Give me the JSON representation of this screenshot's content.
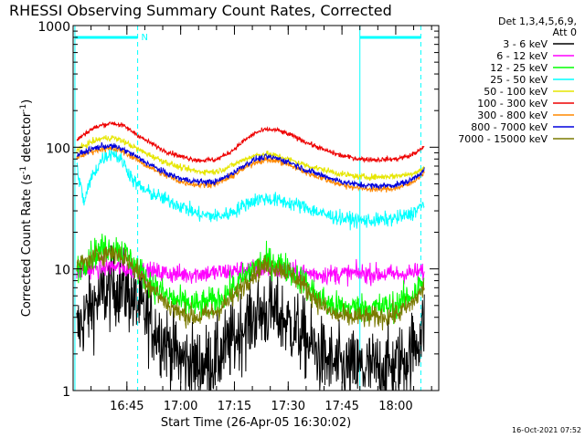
{
  "chart_data": {
    "type": "line",
    "title": "RHESSI Observing Summary Count Rates, Corrected",
    "xlabel": "Start Time (26-Apr-05 16:30:02)",
    "ylabel_main": "Corrected Count Rate (s",
    "ylabel_sup1": "-1",
    "ylabel_mid": " detector",
    "ylabel_sup2": "-1",
    "ylabel_end": ")",
    "yscale": "log",
    "ylim": [
      1,
      1000
    ],
    "xlim_minutes": [
      0,
      102
    ],
    "x_unit": "minutes after 16:30:02",
    "y_ticks": [
      {
        "value": 1,
        "label": "1"
      },
      {
        "value": 10,
        "label": "10"
      },
      {
        "value": 100,
        "label": "100"
      },
      {
        "value": 1000,
        "label": "1000"
      }
    ],
    "x_ticks": [
      {
        "minute": 15,
        "label": "16:45"
      },
      {
        "minute": 30,
        "label": "17:00"
      },
      {
        "minute": 45,
        "label": "17:15"
      },
      {
        "minute": 60,
        "label": "17:30"
      },
      {
        "minute": 75,
        "label": "17:45"
      },
      {
        "minute": 90,
        "label": "18:00"
      }
    ],
    "grid": false,
    "legend_position": "right",
    "legend_header": [
      "Det 1,3,4,5,6,9,",
      "Att 0"
    ],
    "timestamp": "16-Oct-2021 07:52",
    "annotation": {
      "text": "N",
      "minute": 18.5
    },
    "vertical_markers_minutes": [
      {
        "minute": 0.5,
        "style": "solid"
      },
      {
        "minute": 18,
        "style": "dashed"
      },
      {
        "minute": 80,
        "style": "solid"
      },
      {
        "minute": 97,
        "style": "dashed"
      }
    ],
    "night_bars": [
      {
        "from": 0.5,
        "to": 18
      },
      {
        "from": 80,
        "to": 97
      }
    ],
    "series": [
      {
        "name": "3 - 6 keV",
        "color": "#000000",
        "noise": 0.32,
        "points": [
          [
            1,
            3.0
          ],
          [
            4,
            4.5
          ],
          [
            8,
            6.0
          ],
          [
            12,
            7.2
          ],
          [
            15,
            6.5
          ],
          [
            18,
            5.0
          ],
          [
            22,
            3.5
          ],
          [
            26,
            2.5
          ],
          [
            30,
            1.8
          ],
          [
            35,
            1.6
          ],
          [
            40,
            1.8
          ],
          [
            44,
            2.5
          ],
          [
            48,
            3.5
          ],
          [
            52,
            4.3
          ],
          [
            55,
            4.5
          ],
          [
            58,
            4.0
          ],
          [
            62,
            3.2
          ],
          [
            66,
            2.4
          ],
          [
            70,
            1.8
          ],
          [
            75,
            1.5
          ],
          [
            80,
            1.5
          ],
          [
            85,
            1.5
          ],
          [
            90,
            1.6
          ],
          [
            94,
            2.0
          ],
          [
            97,
            3.0
          ],
          [
            98,
            3.5
          ]
        ]
      },
      {
        "name": "6 - 12 keV",
        "color": "#ff00ff",
        "noise": 0.08,
        "points": [
          [
            1,
            9.5
          ],
          [
            10,
            10.5
          ],
          [
            20,
            9.5
          ],
          [
            30,
            9.0
          ],
          [
            40,
            9.3
          ],
          [
            50,
            10
          ],
          [
            55,
            10
          ],
          [
            60,
            9.5
          ],
          [
            70,
            9.0
          ],
          [
            80,
            9.2
          ],
          [
            90,
            9.0
          ],
          [
            98,
            9.5
          ]
        ]
      },
      {
        "name": "12 - 25 keV",
        "color": "#00ff00",
        "noise": 0.12,
        "points": [
          [
            1,
            10
          ],
          [
            5,
            13
          ],
          [
            9,
            15
          ],
          [
            12,
            15
          ],
          [
            15,
            13
          ],
          [
            18,
            10
          ],
          [
            22,
            7.5
          ],
          [
            26,
            6
          ],
          [
            30,
            5.3
          ],
          [
            35,
            5
          ],
          [
            40,
            5.5
          ],
          [
            45,
            7
          ],
          [
            50,
            10
          ],
          [
            53,
            11.5
          ],
          [
            56,
            11.5
          ],
          [
            60,
            10
          ],
          [
            64,
            8
          ],
          [
            68,
            6
          ],
          [
            72,
            5
          ],
          [
            76,
            4.8
          ],
          [
            80,
            4.8
          ],
          [
            85,
            4.8
          ],
          [
            90,
            5
          ],
          [
            94,
            6
          ],
          [
            98,
            8
          ]
        ]
      },
      {
        "name": "25 - 50 keV",
        "color": "#00ffff",
        "noise": 0.06,
        "points": [
          [
            1,
            70
          ],
          [
            3,
            35
          ],
          [
            5,
            55
          ],
          [
            8,
            80
          ],
          [
            11,
            92
          ],
          [
            14,
            75
          ],
          [
            17,
            52
          ],
          [
            20,
            44
          ],
          [
            25,
            38
          ],
          [
            30,
            33
          ],
          [
            35,
            28
          ],
          [
            40,
            27
          ],
          [
            43,
            28
          ],
          [
            46,
            31
          ],
          [
            48,
            34
          ],
          [
            51,
            37
          ],
          [
            53,
            38
          ],
          [
            56,
            37
          ],
          [
            60,
            35
          ],
          [
            65,
            32
          ],
          [
            70,
            28
          ],
          [
            75,
            26
          ],
          [
            80,
            25
          ],
          [
            85,
            25
          ],
          [
            90,
            26
          ],
          [
            94,
            28
          ],
          [
            98,
            34
          ]
        ]
      },
      {
        "name": "50 - 100 keV",
        "color": "#e6e600",
        "noise": 0.025,
        "points": [
          [
            1,
            95
          ],
          [
            5,
            110
          ],
          [
            8,
            118
          ],
          [
            11,
            120
          ],
          [
            14,
            112
          ],
          [
            17,
            100
          ],
          [
            20,
            90
          ],
          [
            25,
            77
          ],
          [
            30,
            68
          ],
          [
            35,
            63
          ],
          [
            40,
            63
          ],
          [
            44,
            70
          ],
          [
            48,
            80
          ],
          [
            51,
            86
          ],
          [
            54,
            88
          ],
          [
            57,
            85
          ],
          [
            61,
            78
          ],
          [
            65,
            71
          ],
          [
            70,
            65
          ],
          [
            75,
            60
          ],
          [
            80,
            57
          ],
          [
            85,
            57
          ],
          [
            90,
            58
          ],
          [
            94,
            60
          ],
          [
            98,
            67
          ]
        ]
      },
      {
        "name": "100 - 300 keV",
        "color": "#ee0000",
        "noise": 0.02,
        "points": [
          [
            1,
            115
          ],
          [
            5,
            140
          ],
          [
            8,
            152
          ],
          [
            11,
            158
          ],
          [
            14,
            150
          ],
          [
            17,
            132
          ],
          [
            20,
            115
          ],
          [
            25,
            95
          ],
          [
            30,
            84
          ],
          [
            35,
            78
          ],
          [
            40,
            79
          ],
          [
            44,
            92
          ],
          [
            48,
            115
          ],
          [
            51,
            132
          ],
          [
            54,
            140
          ],
          [
            57,
            138
          ],
          [
            61,
            125
          ],
          [
            65,
            110
          ],
          [
            70,
            95
          ],
          [
            75,
            85
          ],
          [
            80,
            80
          ],
          [
            85,
            79
          ],
          [
            90,
            80
          ],
          [
            94,
            85
          ],
          [
            98,
            100
          ]
        ]
      },
      {
        "name": "300 - 800 keV",
        "color": "#ff8800",
        "noise": 0.025,
        "points": [
          [
            1,
            83
          ],
          [
            5,
            92
          ],
          [
            8,
            97
          ],
          [
            11,
            97
          ],
          [
            14,
            92
          ],
          [
            17,
            82
          ],
          [
            20,
            72
          ],
          [
            25,
            60
          ],
          [
            30,
            52
          ],
          [
            35,
            49
          ],
          [
            40,
            50
          ],
          [
            44,
            57
          ],
          [
            48,
            68
          ],
          [
            51,
            76
          ],
          [
            54,
            79
          ],
          [
            57,
            77
          ],
          [
            61,
            70
          ],
          [
            65,
            62
          ],
          [
            70,
            55
          ],
          [
            75,
            49
          ],
          [
            80,
            46
          ],
          [
            85,
            45
          ],
          [
            90,
            46
          ],
          [
            94,
            50
          ],
          [
            98,
            62
          ]
        ]
      },
      {
        "name": "800 - 7000 keV",
        "color": "#0000dd",
        "noise": 0.025,
        "points": [
          [
            1,
            86
          ],
          [
            5,
            96
          ],
          [
            8,
            102
          ],
          [
            11,
            102
          ],
          [
            14,
            96
          ],
          [
            17,
            86
          ],
          [
            20,
            76
          ],
          [
            25,
            63
          ],
          [
            30,
            55
          ],
          [
            35,
            52
          ],
          [
            40,
            52
          ],
          [
            44,
            60
          ],
          [
            48,
            72
          ],
          [
            51,
            80
          ],
          [
            54,
            83
          ],
          [
            57,
            81
          ],
          [
            61,
            74
          ],
          [
            65,
            65
          ],
          [
            70,
            58
          ],
          [
            75,
            52
          ],
          [
            80,
            49
          ],
          [
            85,
            48
          ],
          [
            90,
            49
          ],
          [
            94,
            53
          ],
          [
            98,
            65
          ]
        ]
      },
      {
        "name": "7000 - 15000 keV",
        "color": "#7a7a00",
        "noise": 0.09,
        "points": [
          [
            1,
            10.5
          ],
          [
            5,
            12
          ],
          [
            9,
            13.5
          ],
          [
            12,
            13.5
          ],
          [
            15,
            12
          ],
          [
            18,
            9.5
          ],
          [
            22,
            7
          ],
          [
            26,
            5.2
          ],
          [
            30,
            4.3
          ],
          [
            35,
            4
          ],
          [
            40,
            4.5
          ],
          [
            45,
            6
          ],
          [
            50,
            9
          ],
          [
            53,
            10.5
          ],
          [
            56,
            10.5
          ],
          [
            60,
            9.5
          ],
          [
            64,
            7.5
          ],
          [
            68,
            5.5
          ],
          [
            72,
            4.3
          ],
          [
            76,
            4
          ],
          [
            80,
            4
          ],
          [
            85,
            4
          ],
          [
            90,
            4.2
          ],
          [
            94,
            5
          ],
          [
            98,
            7
          ]
        ]
      }
    ]
  }
}
